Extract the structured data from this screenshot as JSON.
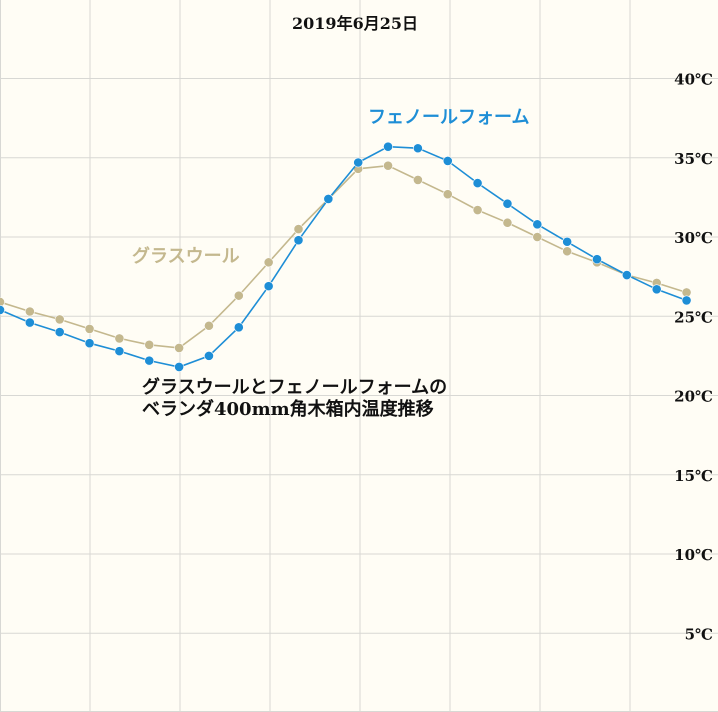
{
  "chart_data": {
    "type": "line",
    "title": "2019年6月25日",
    "subtitle_lines": [
      "グラスウールとフェノールフォームの",
      "ベランダ400mm角木箱内温度推移"
    ],
    "ylim": [
      0,
      45
    ],
    "y_ticks": [
      5,
      10,
      15,
      20,
      25,
      30,
      35,
      40
    ],
    "y_tick_labels": [
      "5℃",
      "10℃",
      "15℃",
      "20℃",
      "25℃",
      "30℃",
      "35℃",
      "40℃"
    ],
    "x": [
      0,
      1,
      2,
      3,
      4,
      5,
      6,
      7,
      8,
      9,
      10,
      11,
      12,
      13,
      14,
      15,
      16,
      17,
      18,
      19,
      20,
      21,
      22,
      23
    ],
    "x_gridlines": 8,
    "grid": true,
    "series": [
      {
        "name": "グラスウール",
        "color": "#c4b88e",
        "values": [
          25.9,
          25.3,
          24.8,
          24.2,
          23.6,
          23.2,
          23.0,
          24.4,
          26.3,
          28.4,
          30.5,
          32.4,
          34.3,
          34.5,
          33.6,
          32.7,
          31.7,
          30.9,
          30.0,
          29.1,
          28.4,
          27.6,
          27.1,
          26.5
        ]
      },
      {
        "name": "フェノールフォーム",
        "color": "#1e8ed6",
        "values": [
          25.4,
          24.6,
          24.0,
          23.3,
          22.8,
          22.2,
          21.8,
          22.5,
          24.3,
          26.9,
          29.8,
          32.4,
          34.7,
          35.7,
          35.6,
          34.8,
          33.4,
          32.1,
          30.8,
          29.7,
          28.6,
          27.6,
          26.7,
          26.0
        ]
      }
    ],
    "legend": [
      {
        "label": "グラスウール",
        "series": 0,
        "position": "left, mid-height"
      },
      {
        "label": "フェノールフォーム",
        "series": 1,
        "position": "top-right"
      }
    ],
    "colors": {
      "background": "#fffdf5",
      "grid": "#d8d8d4",
      "text": "#111111"
    }
  }
}
